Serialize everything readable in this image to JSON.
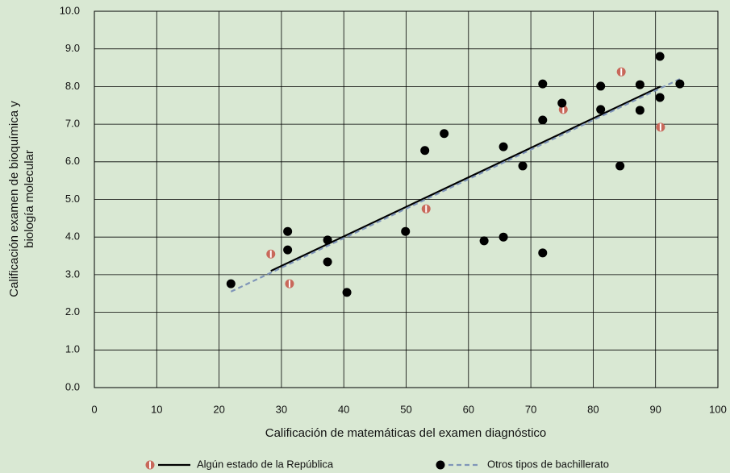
{
  "chart_data": {
    "type": "scatter",
    "x_label": "Calificación de matemáticas del examen diagnóstico",
    "y_label": [
      "Calificación examen de bioquímica y",
      "biología molecular"
    ],
    "xlim": [
      0,
      100
    ],
    "ylim": [
      0,
      10
    ],
    "xticks": [
      0,
      10,
      20,
      30,
      40,
      50,
      60,
      70,
      80,
      90,
      100
    ],
    "yticks": [
      {
        "value": 0,
        "label": "0.0"
      },
      {
        "value": 1,
        "label": "1.0"
      },
      {
        "value": 2,
        "label": "2.0"
      },
      {
        "value": 3,
        "label": "3.0"
      },
      {
        "value": 4,
        "label": "4.0"
      },
      {
        "value": 5,
        "label": "5.0"
      },
      {
        "value": 6,
        "label": "6.0"
      },
      {
        "value": 7,
        "label": "7.0"
      },
      {
        "value": 8,
        "label": "8.0"
      },
      {
        "value": 9,
        "label": "9.0"
      },
      {
        "value": 10,
        "label": "10.0"
      }
    ],
    "grid": true,
    "series": [
      {
        "name": "Algún estado de la República",
        "color": "#c8685a",
        "line_style": "solid",
        "line_color": "#000000",
        "x": [
          28.3,
          31.3,
          53.2,
          75.2,
          84.5,
          90.8
        ],
        "y": [
          3.55,
          2.76,
          4.75,
          7.39,
          8.39,
          6.92
        ],
        "trend": {
          "x": [
            28.3,
            90.8
          ],
          "y": [
            3.1,
            8.0
          ]
        }
      },
      {
        "name": "Otros tipos de bachillerato",
        "color": "#000000",
        "line_style": "dashed",
        "line_color": "#7f95b8",
        "x": [
          21.9,
          31.0,
          31.0,
          37.4,
          37.4,
          40.5,
          49.9,
          53.0,
          56.1,
          62.5,
          65.6,
          65.6,
          68.7,
          71.9,
          71.9,
          71.9,
          75.0,
          81.2,
          81.2,
          84.3,
          87.5,
          87.5,
          90.7,
          90.7,
          93.9
        ],
        "y": [
          2.76,
          4.15,
          3.66,
          3.92,
          3.34,
          2.53,
          4.15,
          6.3,
          6.75,
          3.9,
          6.4,
          4.0,
          5.89,
          8.07,
          7.11,
          3.58,
          7.56,
          8.01,
          7.39,
          5.89,
          8.05,
          7.37,
          8.8,
          7.71,
          8.07
        ],
        "trend": {
          "x": [
            21.9,
            93.9
          ],
          "y": [
            2.55,
            8.2
          ]
        }
      }
    ]
  }
}
